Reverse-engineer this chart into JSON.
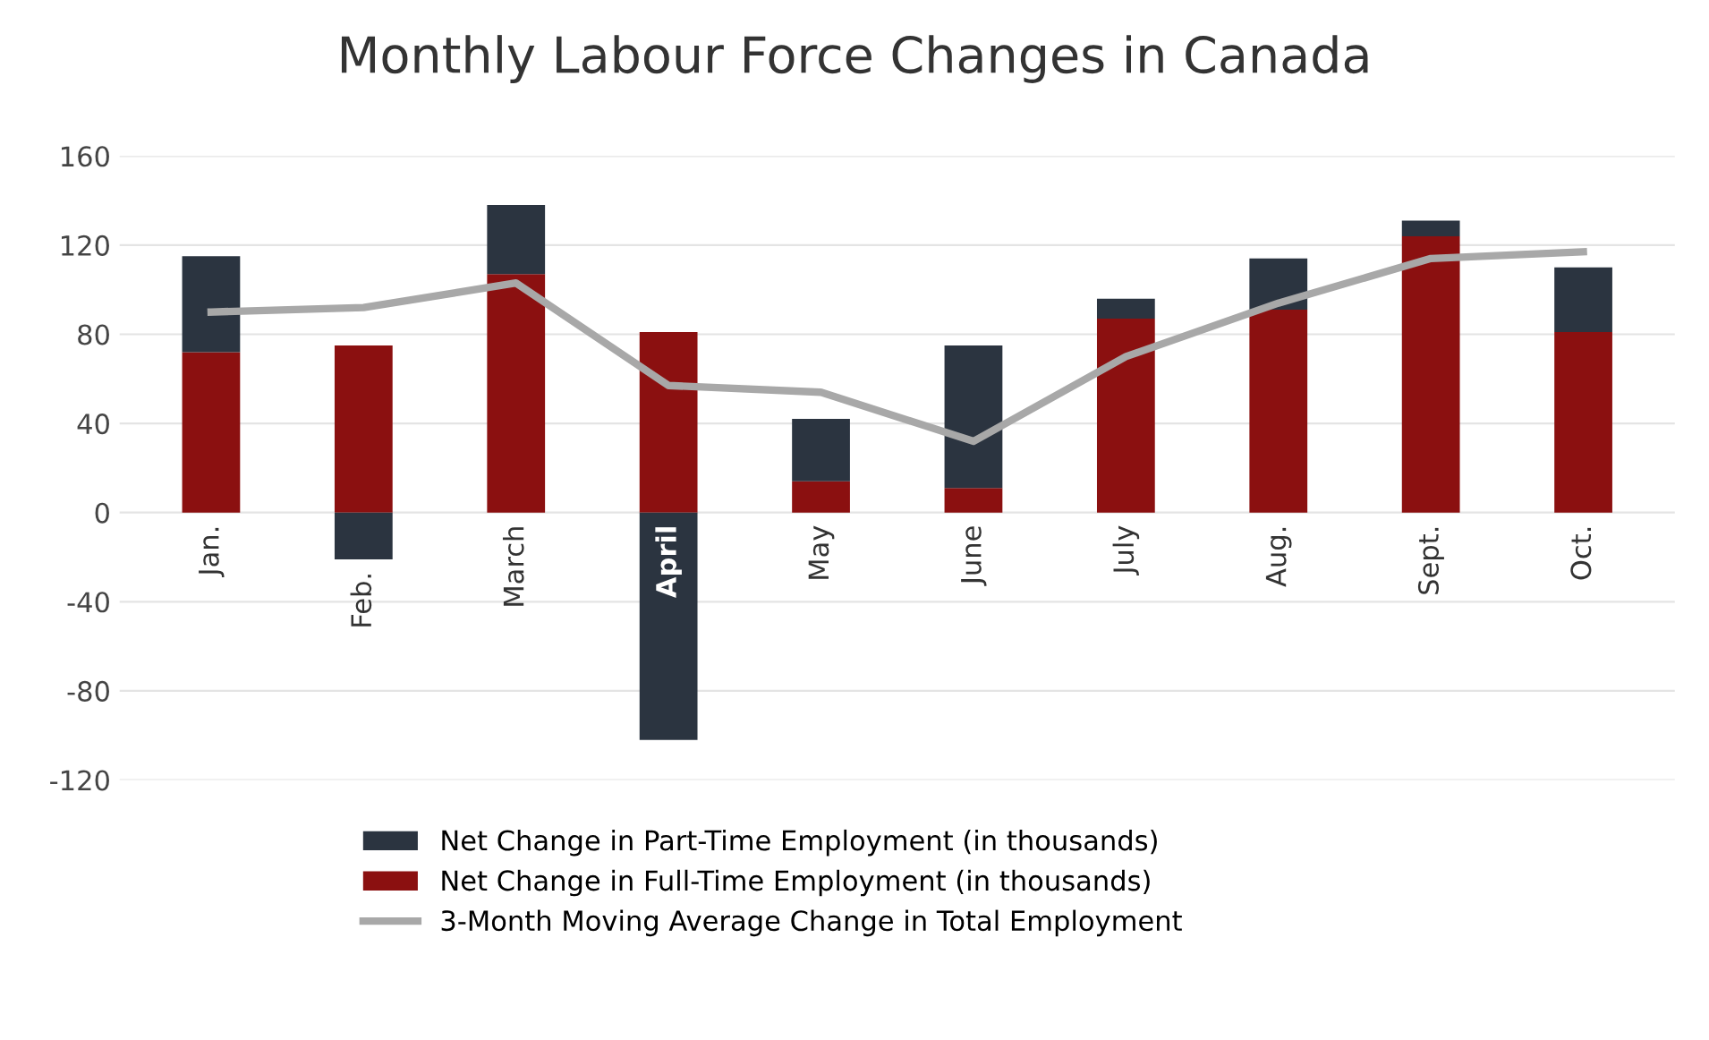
{
  "chart_data": {
    "type": "bar",
    "title": "Monthly Labour Force Changes in Canada",
    "categories": [
      "Jan.",
      "Feb.",
      "March",
      "April",
      "May",
      "June",
      "July",
      "Aug.",
      "Sept.",
      "Oct."
    ],
    "stacked": true,
    "series": [
      {
        "name": "Net Change in Full-Time Employment (in thousands)",
        "color": "#8b1010",
        "values": [
          72,
          75,
          107,
          81,
          14,
          11,
          87,
          91,
          124,
          81
        ]
      },
      {
        "name": "Net Change in Part-Time Employment (in thousands)",
        "color": "#2b3440",
        "values": [
          43,
          -21,
          31,
          -102,
          28,
          64,
          9,
          23,
          7,
          29
        ]
      },
      {
        "name": "3-Month Moving Average Change in Total Employment",
        "type": "line",
        "color": "#a8a8a8",
        "values": [
          90,
          92,
          103,
          57,
          54,
          32,
          70,
          94,
          114,
          117
        ]
      }
    ],
    "ylim": [
      -120,
      160
    ],
    "yticks": [
      -120,
      -80,
      -40,
      0,
      40,
      80,
      120,
      160
    ],
    "grid": "y",
    "legend": "bottom",
    "marker": "none",
    "line_style": "solid"
  }
}
